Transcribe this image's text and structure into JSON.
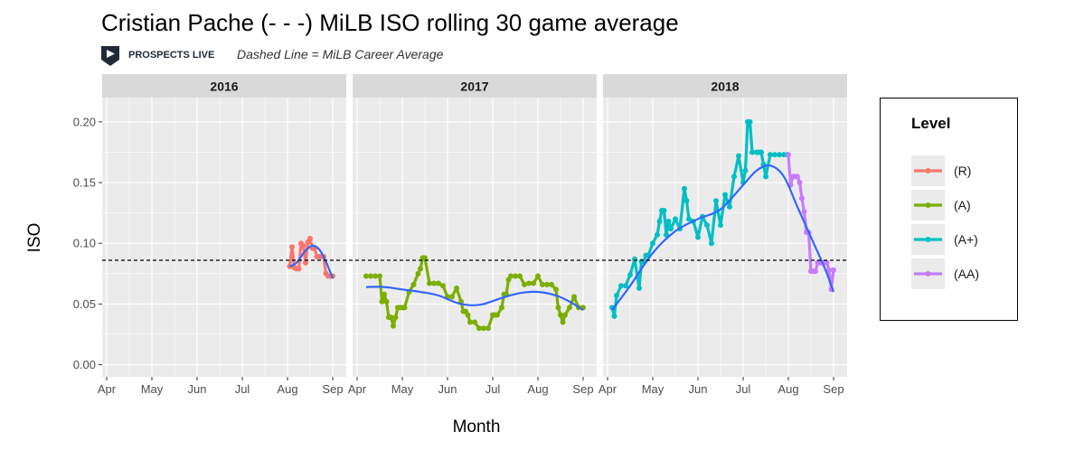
{
  "title": "Cristian Pache (- - -) MiLB ISO rolling 30 game average",
  "logo_text": "PROSPECTS LIVE",
  "subtitle": "Dashed Line = MiLB Career Average",
  "chart_data": {
    "type": "line",
    "xlabel": "Month",
    "ylabel": "ISO",
    "ylim": [
      -0.01,
      0.22
    ],
    "yticks": [
      0.0,
      0.05,
      0.1,
      0.15,
      0.2
    ],
    "ytick_labels": [
      "0.00",
      "0.05",
      "0.10",
      "0.15",
      "0.20"
    ],
    "xlim": [
      3.9,
      9.3
    ],
    "xticks": [
      4,
      5,
      6,
      7,
      8,
      9
    ],
    "xtick_labels": [
      "Apr",
      "May",
      "Jun",
      "Jul",
      "Aug",
      "Sep"
    ],
    "career_average": 0.086,
    "grid": true,
    "legend": {
      "title": "Level",
      "placement": "right",
      "entries": [
        {
          "label": "(R)",
          "color": "#f8766d"
        },
        {
          "label": "(A)",
          "color": "#7cae00"
        },
        {
          "label": "(A+)",
          "color": "#00bfc4"
        },
        {
          "label": "(AA)",
          "color": "#c77cff"
        }
      ]
    },
    "panels": [
      {
        "label": "2016",
        "series": [
          {
            "name": "(R)",
            "color": "#f8766d",
            "x": [
              8.05,
              8.1,
              8.15,
              8.2,
              8.25,
              8.3,
              8.35,
              8.4,
              8.45,
              8.5,
              8.55,
              8.6,
              8.65,
              8.7,
              8.75,
              8.8,
              8.85,
              8.9,
              8.95,
              9.0
            ],
            "y": [
              0.081,
              0.097,
              0.08,
              0.079,
              0.079,
              0.1,
              0.098,
              0.084,
              0.101,
              0.104,
              0.096,
              0.096,
              0.089,
              0.089,
              0.089,
              0.089,
              0.075,
              0.073,
              0.073,
              0.073
            ]
          }
        ],
        "smooth": {
          "x": [
            8.05,
            8.2,
            8.4,
            8.55,
            8.7,
            8.85,
            9.0
          ],
          "y": [
            0.081,
            0.084,
            0.094,
            0.098,
            0.095,
            0.085,
            0.071
          ]
        }
      },
      {
        "label": "2017",
        "series": [
          {
            "name": "(A)",
            "color": "#7cae00",
            "x": [
              4.2,
              4.3,
              4.4,
              4.5,
              4.55,
              4.6,
              4.65,
              4.7,
              4.75,
              4.8,
              4.85,
              4.9,
              4.95,
              5.0,
              5.05,
              5.15,
              5.25,
              5.35,
              5.4,
              5.45,
              5.5,
              5.6,
              5.7,
              5.8,
              5.9,
              6.0,
              6.1,
              6.2,
              6.3,
              6.35,
              6.4,
              6.45,
              6.5,
              6.6,
              6.7,
              6.8,
              6.9,
              7.0,
              7.05,
              7.1,
              7.2,
              7.25,
              7.3,
              7.35,
              7.4,
              7.5,
              7.6,
              7.7,
              7.8,
              7.9,
              8.0,
              8.1,
              8.2,
              8.3,
              8.4,
              8.45,
              8.5,
              8.55,
              8.6,
              8.7,
              8.8,
              8.9,
              9.0
            ],
            "y": [
              0.073,
              0.073,
              0.073,
              0.073,
              0.052,
              0.058,
              0.052,
              0.039,
              0.039,
              0.032,
              0.039,
              0.047,
              0.047,
              0.047,
              0.047,
              0.06,
              0.066,
              0.075,
              0.079,
              0.088,
              0.088,
              0.067,
              0.067,
              0.067,
              0.065,
              0.056,
              0.056,
              0.063,
              0.052,
              0.044,
              0.044,
              0.041,
              0.035,
              0.035,
              0.03,
              0.03,
              0.03,
              0.041,
              0.041,
              0.041,
              0.047,
              0.058,
              0.058,
              0.07,
              0.073,
              0.073,
              0.073,
              0.066,
              0.067,
              0.067,
              0.073,
              0.066,
              0.066,
              0.066,
              0.062,
              0.047,
              0.041,
              0.035,
              0.041,
              0.047,
              0.056,
              0.047,
              0.047
            ]
          }
        ],
        "smooth": {
          "x": [
            4.2,
            4.6,
            5.0,
            5.4,
            5.8,
            6.2,
            6.5,
            6.8,
            7.2,
            7.6,
            8.0,
            8.4,
            8.7,
            9.0
          ],
          "y": [
            0.064,
            0.064,
            0.062,
            0.06,
            0.057,
            0.051,
            0.049,
            0.05,
            0.055,
            0.059,
            0.06,
            0.057,
            0.052,
            0.045
          ]
        }
      },
      {
        "label": "2018",
        "series": [
          {
            "name": "(A+)",
            "color": "#00bfc4",
            "x": [
              4.1,
              4.15,
              4.2,
              4.3,
              4.4,
              4.5,
              4.6,
              4.7,
              4.75,
              4.8,
              4.85,
              4.9,
              5.0,
              5.1,
              5.15,
              5.2,
              5.25,
              5.3,
              5.35,
              5.4,
              5.5,
              5.6,
              5.7,
              5.75,
              5.8,
              5.9,
              6.0,
              6.1,
              6.2,
              6.3,
              6.4,
              6.5,
              6.6,
              6.7,
              6.8,
              6.9,
              7.0,
              7.05,
              7.1,
              7.15,
              7.2,
              7.3,
              7.35,
              7.4,
              7.45,
              7.5,
              7.6,
              7.7,
              7.8,
              7.9,
              7.98
            ],
            "y": [
              0.047,
              0.04,
              0.057,
              0.065,
              0.065,
              0.074,
              0.087,
              0.063,
              0.085,
              0.085,
              0.09,
              0.09,
              0.1,
              0.107,
              0.118,
              0.127,
              0.127,
              0.107,
              0.118,
              0.112,
              0.12,
              0.112,
              0.145,
              0.135,
              0.12,
              0.118,
              0.105,
              0.122,
              0.115,
              0.1,
              0.135,
              0.115,
              0.14,
              0.13,
              0.155,
              0.172,
              0.15,
              0.16,
              0.2,
              0.2,
              0.175,
              0.175,
              0.175,
              0.175,
              0.165,
              0.155,
              0.173,
              0.173,
              0.173,
              0.173,
              0.173
            ]
          },
          {
            "name": "(AA)",
            "color": "#c77cff",
            "x": [
              8.0,
              8.05,
              8.1,
              8.15,
              8.2,
              8.25,
              8.3,
              8.35,
              8.4,
              8.45,
              8.5,
              8.55,
              8.6,
              8.65,
              8.7,
              8.75,
              8.8,
              8.85,
              8.9,
              8.95,
              9.0
            ],
            "y": [
              0.173,
              0.148,
              0.155,
              0.155,
              0.155,
              0.15,
              0.137,
              0.126,
              0.109,
              0.109,
              0.077,
              0.077,
              0.077,
              0.084,
              0.084,
              0.084,
              0.084,
              0.084,
              0.078,
              0.062,
              0.078
            ]
          }
        ],
        "smooth": {
          "x": [
            4.1,
            4.5,
            5.0,
            5.5,
            6.0,
            6.5,
            7.0,
            7.3,
            7.6,
            7.9,
            8.2,
            8.5,
            8.8,
            9.0
          ],
          "y": [
            0.045,
            0.065,
            0.092,
            0.11,
            0.12,
            0.128,
            0.148,
            0.16,
            0.164,
            0.155,
            0.13,
            0.105,
            0.08,
            0.06
          ]
        }
      }
    ]
  }
}
